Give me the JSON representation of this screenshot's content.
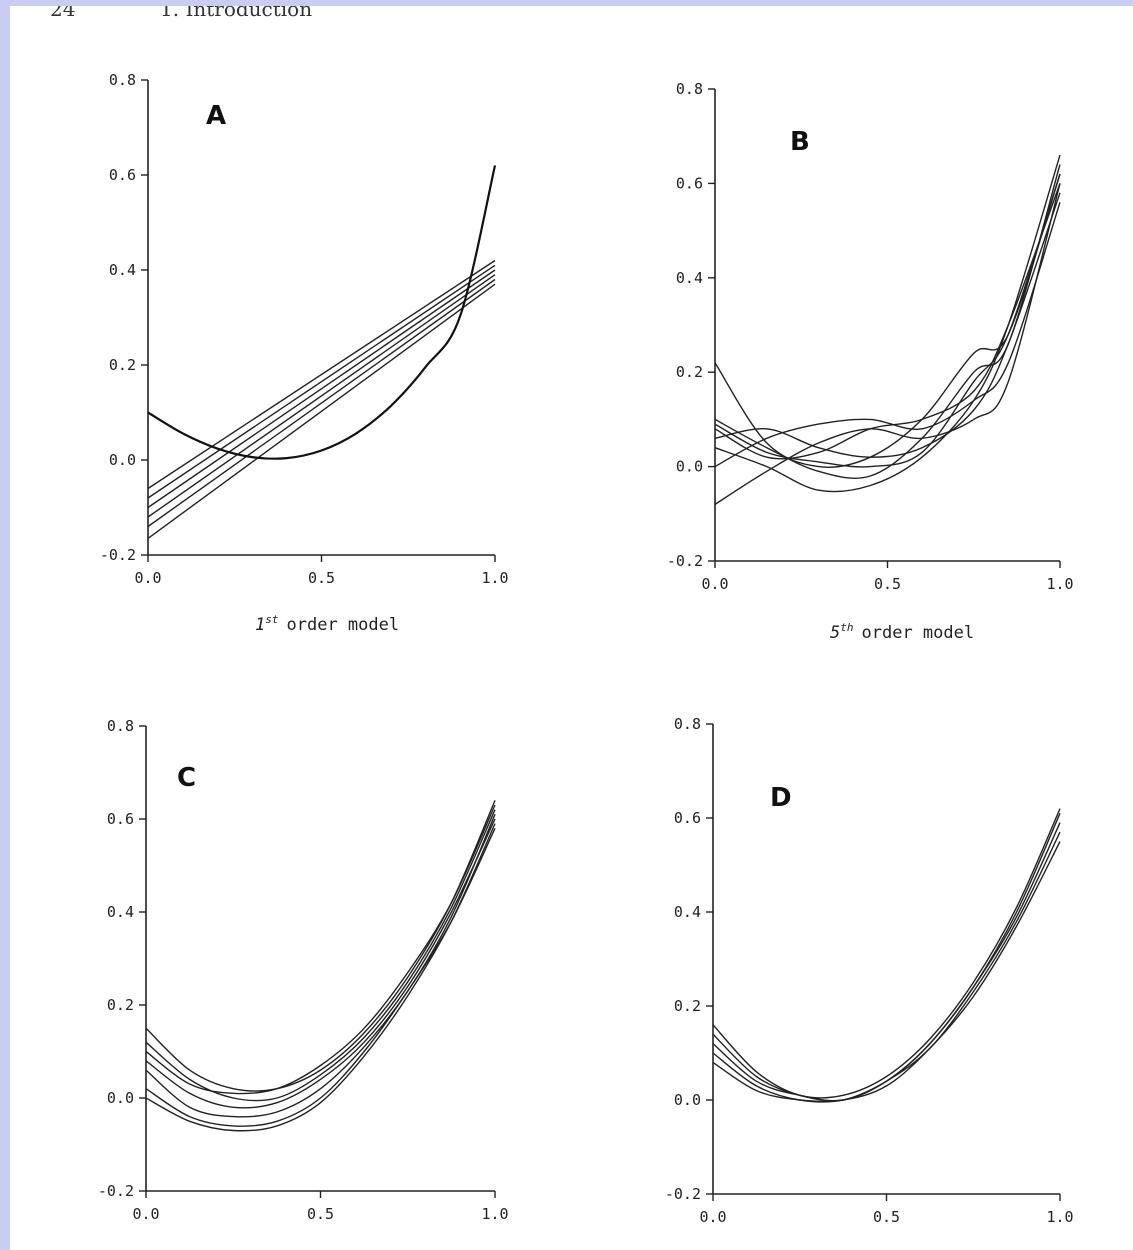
{
  "page_header": {
    "number": "24",
    "title": "1. Introduction"
  },
  "chart_data": [
    {
      "panel": "A",
      "type": "line",
      "xlim": [
        0,
        1
      ],
      "ylim": [
        -0.2,
        0.8
      ],
      "xticks": [
        "0.0",
        "0.5",
        "1.0"
      ],
      "yticks": [
        "-0.2",
        "0.0",
        "0.2",
        "0.4",
        "0.6",
        "0.8"
      ],
      "xlabel": {
        "number": "1",
        "suffix": "st",
        "rest": "order model"
      },
      "true_function": {
        "x": [
          0,
          0.1,
          0.2,
          0.3,
          0.4,
          0.5,
          0.6,
          0.7,
          0.8,
          0.9,
          1.0
        ],
        "y": [
          0.1,
          0.056,
          0.024,
          0.006,
          0.004,
          0.02,
          0.056,
          0.114,
          0.196,
          0.304,
          0.62
        ]
      },
      "series": [
        {
          "x": [
            0,
            1
          ],
          "y": [
            -0.06,
            0.42
          ]
        },
        {
          "x": [
            0,
            1
          ],
          "y": [
            -0.08,
            0.41
          ]
        },
        {
          "x": [
            0,
            1
          ],
          "y": [
            -0.1,
            0.4
          ]
        },
        {
          "x": [
            0,
            1
          ],
          "y": [
            -0.12,
            0.39
          ]
        },
        {
          "x": [
            0,
            1
          ],
          "y": [
            -0.14,
            0.38
          ]
        },
        {
          "x": [
            0,
            1
          ],
          "y": [
            -0.165,
            0.37
          ]
        }
      ]
    },
    {
      "panel": "B",
      "type": "line",
      "xlim": [
        0,
        1
      ],
      "ylim": [
        -0.2,
        0.8
      ],
      "xticks": [
        "0.0",
        "0.5",
        "1.0"
      ],
      "yticks": [
        "-0.2",
        "0.0",
        "0.2",
        "0.4",
        "0.6",
        "0.8"
      ],
      "xlabel": {
        "number": "5",
        "suffix": "th",
        "rest": "order model"
      },
      "series": [
        {
          "x": [
            0,
            0.15,
            0.3,
            0.45,
            0.6,
            0.75,
            0.85,
            1.0
          ],
          "y": [
            0.22,
            0.05,
            0.0,
            0.02,
            0.1,
            0.24,
            0.28,
            0.62
          ]
        },
        {
          "x": [
            0,
            0.15,
            0.3,
            0.45,
            0.6,
            0.75,
            0.85,
            1.0
          ],
          "y": [
            0.1,
            0.04,
            -0.01,
            -0.02,
            0.06,
            0.2,
            0.26,
            0.64
          ]
        },
        {
          "x": [
            0,
            0.15,
            0.3,
            0.45,
            0.6,
            0.75,
            0.85,
            1.0
          ],
          "y": [
            0.08,
            0.02,
            0.03,
            0.08,
            0.1,
            0.16,
            0.3,
            0.6
          ]
        },
        {
          "x": [
            0,
            0.15,
            0.3,
            0.45,
            0.6,
            0.75,
            0.85,
            1.0
          ],
          "y": [
            0.06,
            0.08,
            0.04,
            0.02,
            0.04,
            0.12,
            0.26,
            0.58
          ]
        },
        {
          "x": [
            0,
            0.15,
            0.3,
            0.45,
            0.6,
            0.75,
            0.85,
            1.0
          ],
          "y": [
            0.04,
            0.0,
            -0.05,
            -0.04,
            0.02,
            0.14,
            0.3,
            0.66
          ]
        },
        {
          "x": [
            0,
            0.15,
            0.3,
            0.45,
            0.6,
            0.75,
            0.85,
            1.0
          ],
          "y": [
            0.0,
            0.06,
            0.09,
            0.1,
            0.08,
            0.14,
            0.22,
            0.56
          ]
        },
        {
          "x": [
            0,
            0.15,
            0.3,
            0.45,
            0.6,
            0.75,
            0.85,
            1.0
          ],
          "y": [
            -0.08,
            -0.01,
            0.05,
            0.08,
            0.06,
            0.1,
            0.18,
            0.6
          ]
        },
        {
          "x": [
            0,
            0.15,
            0.3,
            0.45,
            0.6,
            0.75,
            0.85,
            1.0
          ],
          "y": [
            0.09,
            0.03,
            0.01,
            0.0,
            0.03,
            0.18,
            0.28,
            0.62
          ]
        }
      ]
    },
    {
      "panel": "C",
      "type": "line",
      "xlim": [
        0,
        1
      ],
      "ylim": [
        -0.2,
        0.8
      ],
      "xticks": [
        "0.0",
        "0.5",
        "1.0"
      ],
      "yticks": [
        "-0.2",
        "0.0",
        "0.2",
        "0.4",
        "0.6",
        "0.8"
      ],
      "series": [
        {
          "x": [
            0,
            0.125,
            0.25,
            0.375,
            0.5,
            0.625,
            0.75,
            0.875,
            1.0
          ],
          "y": [
            0.15,
            0.06,
            0.02,
            0.02,
            0.06,
            0.14,
            0.26,
            0.42,
            0.64
          ]
        },
        {
          "x": [
            0,
            0.125,
            0.25,
            0.375,
            0.5,
            0.625,
            0.75,
            0.875,
            1.0
          ],
          "y": [
            0.12,
            0.04,
            0.0,
            0.0,
            0.05,
            0.13,
            0.25,
            0.41,
            0.62
          ]
        },
        {
          "x": [
            0,
            0.125,
            0.25,
            0.375,
            0.5,
            0.625,
            0.75,
            0.875,
            1.0
          ],
          "y": [
            0.1,
            0.03,
            0.01,
            0.02,
            0.07,
            0.15,
            0.27,
            0.42,
            0.63
          ]
        },
        {
          "x": [
            0,
            0.125,
            0.25,
            0.375,
            0.5,
            0.625,
            0.75,
            0.875,
            1.0
          ],
          "y": [
            0.08,
            0.01,
            -0.02,
            -0.01,
            0.04,
            0.12,
            0.24,
            0.4,
            0.6
          ]
        },
        {
          "x": [
            0,
            0.125,
            0.25,
            0.375,
            0.5,
            0.625,
            0.75,
            0.875,
            1.0
          ],
          "y": [
            0.06,
            -0.02,
            -0.04,
            -0.03,
            0.02,
            0.11,
            0.23,
            0.39,
            0.61
          ]
        },
        {
          "x": [
            0,
            0.125,
            0.25,
            0.375,
            0.5,
            0.625,
            0.75,
            0.875,
            1.0
          ],
          "y": [
            0.02,
            -0.04,
            -0.06,
            -0.05,
            0.0,
            0.1,
            0.23,
            0.38,
            0.58
          ]
        },
        {
          "x": [
            0,
            0.125,
            0.25,
            0.375,
            0.5,
            0.625,
            0.75,
            0.875,
            1.0
          ],
          "y": [
            0.0,
            -0.05,
            -0.07,
            -0.06,
            -0.01,
            0.09,
            0.22,
            0.38,
            0.59
          ]
        }
      ]
    },
    {
      "panel": "D",
      "type": "line",
      "xlim": [
        0,
        1
      ],
      "ylim": [
        -0.2,
        0.8
      ],
      "xticks": [
        "0.0",
        "0.5",
        "1.0"
      ],
      "yticks": [
        "-0.2",
        "0.0",
        "0.2",
        "0.4",
        "0.6",
        "0.8"
      ],
      "series": [
        {
          "x": [
            0,
            0.125,
            0.25,
            0.375,
            0.5,
            0.625,
            0.75,
            0.875,
            1.0
          ],
          "y": [
            0.16,
            0.06,
            0.01,
            0.01,
            0.05,
            0.13,
            0.25,
            0.41,
            0.62
          ]
        },
        {
          "x": [
            0,
            0.125,
            0.25,
            0.375,
            0.5,
            0.625,
            0.75,
            0.875,
            1.0
          ],
          "y": [
            0.14,
            0.05,
            0.01,
            0.0,
            0.04,
            0.12,
            0.24,
            0.4,
            0.61
          ]
        },
        {
          "x": [
            0,
            0.125,
            0.25,
            0.375,
            0.5,
            0.625,
            0.75,
            0.875,
            1.0
          ],
          "y": [
            0.12,
            0.04,
            0.01,
            0.0,
            0.04,
            0.12,
            0.24,
            0.39,
            0.59
          ]
        },
        {
          "x": [
            0,
            0.125,
            0.25,
            0.375,
            0.5,
            0.625,
            0.75,
            0.875,
            1.0
          ],
          "y": [
            0.1,
            0.03,
            0.0,
            0.0,
            0.04,
            0.11,
            0.23,
            0.38,
            0.57
          ]
        },
        {
          "x": [
            0,
            0.125,
            0.25,
            0.375,
            0.5,
            0.625,
            0.75,
            0.875,
            1.0
          ],
          "y": [
            0.08,
            0.02,
            0.0,
            0.0,
            0.03,
            0.11,
            0.22,
            0.37,
            0.55
          ]
        }
      ]
    }
  ]
}
